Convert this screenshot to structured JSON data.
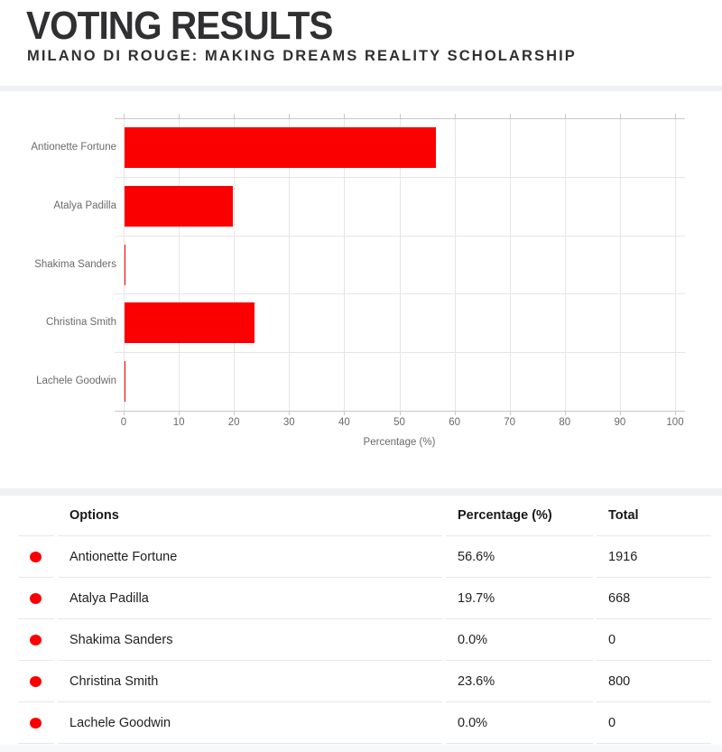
{
  "page": {
    "title": "VOTING RESULTS",
    "subtitle": "MILANO DI ROUGE: MAKING DREAMS REALITY SCHOLARSHIP"
  },
  "chart_data": {
    "type": "bar",
    "orientation": "horizontal",
    "categories": [
      "Antionette Fortune",
      "Atalya Padilla",
      "Shakima Sanders",
      "Christina Smith",
      "Lachele Goodwin"
    ],
    "values": [
      56.6,
      19.7,
      0.0,
      23.6,
      0.0
    ],
    "xlabel": "Percentage (%)",
    "xlim": [
      0,
      100
    ],
    "xticks": [
      0,
      10,
      20,
      30,
      40,
      50,
      60,
      70,
      80,
      90,
      100
    ],
    "grid": true,
    "legend": false,
    "bar_color": "#fb0000",
    "axis_text_color": "#6a6a6a"
  },
  "table": {
    "headers": {
      "options": "Options",
      "percentage": "Percentage (%)",
      "total": "Total"
    },
    "dot_color": "#fb0000",
    "rows": [
      {
        "option": "Antionette Fortune",
        "percentage": "56.6%",
        "total": "1916"
      },
      {
        "option": "Atalya Padilla",
        "percentage": "19.7%",
        "total": "668"
      },
      {
        "option": "Shakima Sanders",
        "percentage": "0.0%",
        "total": "0"
      },
      {
        "option": "Christina Smith",
        "percentage": "23.6%",
        "total": "800"
      },
      {
        "option": "Lachele Goodwin",
        "percentage": "0.0%",
        "total": "0"
      }
    ]
  }
}
